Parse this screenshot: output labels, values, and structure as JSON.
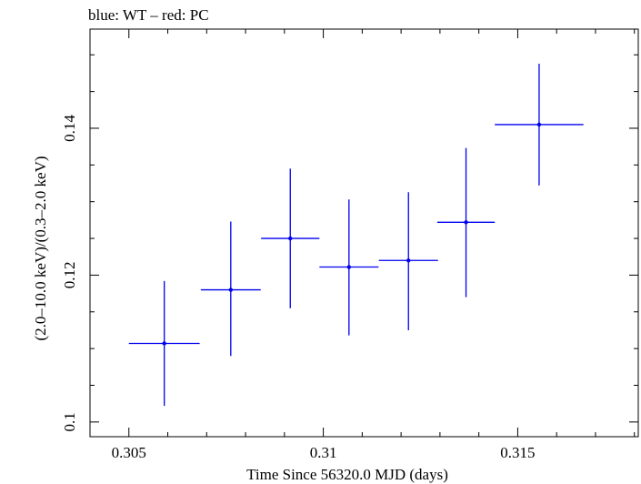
{
  "chart_data": {
    "type": "scatter",
    "title": "blue: WT – red: PC",
    "xlabel": "Time Since 56320.0 MJD (days)",
    "ylabel": "(2.0–10.0 keV)/(0.3–2.0 keV)",
    "xlim": [
      0.304,
      0.3181
    ],
    "ylim": [
      0.098,
      0.1535
    ],
    "x_ticks": [
      0.305,
      0.31,
      0.315
    ],
    "x_tick_labels": [
      "0.305",
      "0.31",
      "0.315"
    ],
    "y_ticks": [
      0.1,
      0.12,
      0.14
    ],
    "y_tick_labels": [
      "0.1",
      "0.12",
      "0.14"
    ],
    "grid": false,
    "series": [
      {
        "color": "#0000ee",
        "points": [
          {
            "x": 0.30591,
            "y": 0.1107,
            "xerr": 0.00091,
            "yerr_lo": 0.0085,
            "yerr_hi": 0.0085
          },
          {
            "x": 0.30762,
            "y": 0.118,
            "xerr": 0.00077,
            "yerr_lo": 0.009,
            "yerr_hi": 0.0093
          },
          {
            "x": 0.30915,
            "y": 0.125,
            "xerr": 0.00075,
            "yerr_lo": 0.0095,
            "yerr_hi": 0.0095
          },
          {
            "x": 0.31066,
            "y": 0.1211,
            "xerr": 0.00076,
            "yerr_lo": 0.0093,
            "yerr_hi": 0.0092
          },
          {
            "x": 0.31219,
            "y": 0.122,
            "xerr": 0.00076,
            "yerr_lo": 0.0095,
            "yerr_hi": 0.0093
          },
          {
            "x": 0.31367,
            "y": 0.1272,
            "xerr": 0.00074,
            "yerr_lo": 0.0102,
            "yerr_hi": 0.0101
          },
          {
            "x": 0.31555,
            "y": 0.1405,
            "xerr": 0.00114,
            "yerr_lo": 0.0083,
            "yerr_hi": 0.0083
          }
        ]
      }
    ]
  }
}
